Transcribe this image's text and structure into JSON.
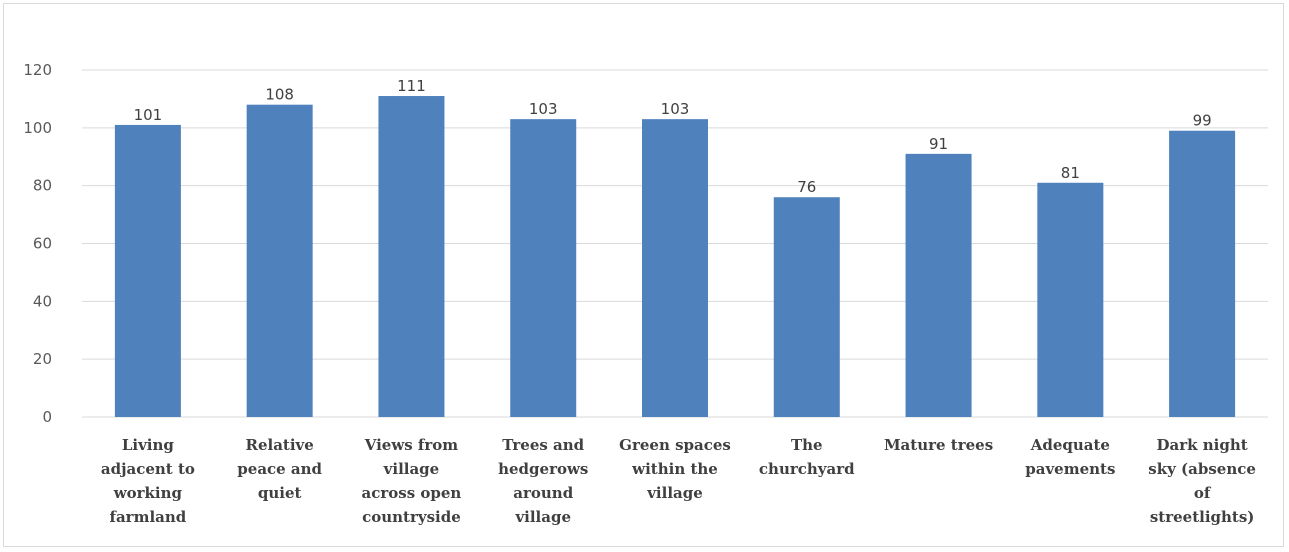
{
  "chart_data": {
    "type": "bar",
    "title": "",
    "xlabel": "",
    "ylabel": "",
    "ylim": [
      0,
      120
    ],
    "yticks": [
      0,
      20,
      40,
      60,
      80,
      100,
      120
    ],
    "grid": true,
    "legend": "none",
    "bar_color": "#4f81bd",
    "gridline_color": "#d9d9d9",
    "categories": [
      [
        "Living",
        "adjacent to",
        "working",
        "farmland"
      ],
      [
        "Relative",
        "peace and",
        "quiet"
      ],
      [
        "Views from",
        "village",
        "across open",
        "countryside"
      ],
      [
        "Trees and",
        "hedgerows",
        "around",
        "village"
      ],
      [
        "Green spaces",
        "within the",
        "village"
      ],
      [
        "The",
        "churchyard"
      ],
      [
        "Mature trees"
      ],
      [
        "Adequate",
        "pavements"
      ],
      [
        "Dark night",
        "sky (absence",
        "of",
        "streetlights)"
      ]
    ],
    "values": [
      101,
      108,
      111,
      103,
      103,
      76,
      91,
      81,
      99
    ]
  }
}
